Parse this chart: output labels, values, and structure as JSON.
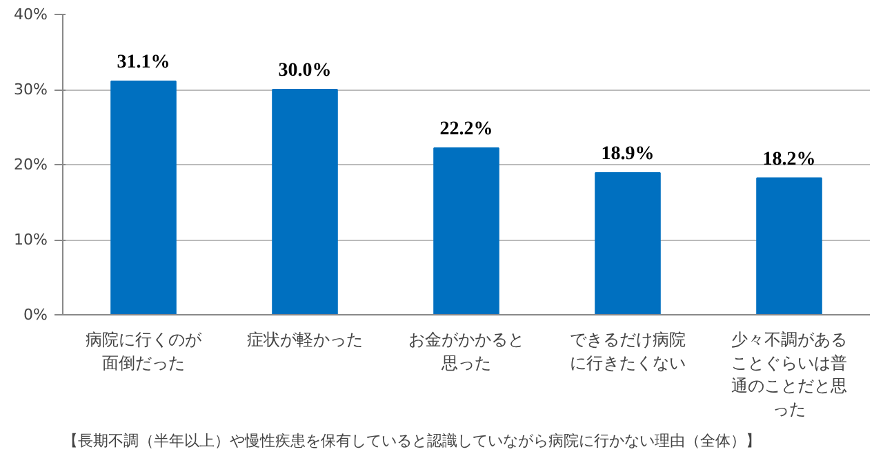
{
  "chart_data": {
    "type": "bar",
    "categories": [
      "病院に行くのが面倒だった",
      "症状が軽かった",
      "お金がかかると思った",
      "できるだけ病院に行きたくない",
      "少々不調があることぐらいは普通のことだと思った"
    ],
    "values": [
      31.1,
      30.0,
      22.2,
      18.9,
      18.2
    ],
    "color": "#0070c0",
    "value_labels": [
      "31.1%",
      "30.0%",
      "22.2%",
      "18.9%",
      "18.2%"
    ],
    "ylim": [
      0,
      40
    ],
    "yticks": [
      {
        "value": 0,
        "label": "0%"
      },
      {
        "value": 10,
        "label": "10%"
      },
      {
        "value": 20,
        "label": "20%"
      },
      {
        "value": 30,
        "label": "30%"
      },
      {
        "value": 40,
        "label": "40%"
      }
    ],
    "grid": "y",
    "annotations": [
      "【長期不調（半年以上）や慢性疾患を保有していると認識していながら病院に行かない理由（全体）】"
    ]
  }
}
